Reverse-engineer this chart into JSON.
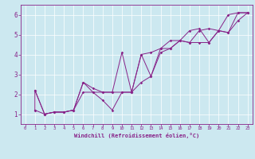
{
  "xlabel": "Windchill (Refroidissement éolien,°C)",
  "bg_color": "#cce8f0",
  "line_color": "#882288",
  "xlim": [
    -0.5,
    23.5
  ],
  "ylim": [
    0.5,
    6.5
  ],
  "xticks": [
    0,
    1,
    2,
    3,
    4,
    5,
    6,
    7,
    8,
    9,
    10,
    11,
    12,
    13,
    14,
    15,
    16,
    17,
    18,
    19,
    20,
    21,
    22,
    23
  ],
  "yticks": [
    1,
    2,
    3,
    4,
    5,
    6
  ],
  "line1_x": [
    1,
    1,
    2,
    3,
    4,
    5,
    6,
    7,
    8,
    9,
    10,
    11,
    12,
    13,
    14,
    15,
    16,
    17,
    18,
    19,
    20,
    21,
    22,
    23
  ],
  "line1_y": [
    1.2,
    2.2,
    1.0,
    1.1,
    1.1,
    1.2,
    2.6,
    2.3,
    2.1,
    2.1,
    4.1,
    2.1,
    4.0,
    4.1,
    4.3,
    4.7,
    4.7,
    5.2,
    5.3,
    4.6,
    5.2,
    6.0,
    6.1,
    6.1
  ],
  "line2_x": [
    1,
    2,
    3,
    4,
    5,
    6,
    7,
    8,
    9,
    10,
    11,
    12,
    13,
    14,
    15,
    16,
    17,
    18,
    19,
    20,
    21,
    22,
    23
  ],
  "line2_y": [
    2.2,
    1.0,
    1.1,
    1.1,
    1.2,
    2.6,
    2.1,
    1.7,
    1.2,
    2.1,
    2.1,
    2.6,
    2.9,
    4.3,
    4.3,
    4.7,
    4.6,
    5.2,
    5.3,
    5.2,
    5.1,
    5.7,
    6.1
  ],
  "line3_x": [
    1,
    2,
    3,
    4,
    5,
    6,
    7,
    8,
    9,
    10,
    11,
    12,
    13,
    14,
    15,
    16,
    17,
    18,
    19,
    20,
    21,
    22,
    23
  ],
  "line3_y": [
    1.2,
    1.0,
    1.1,
    1.1,
    1.2,
    2.1,
    2.1,
    2.1,
    2.1,
    2.1,
    2.1,
    4.0,
    2.9,
    4.1,
    4.3,
    4.7,
    4.6,
    4.6,
    4.6,
    5.2,
    5.1,
    6.1,
    6.1
  ]
}
